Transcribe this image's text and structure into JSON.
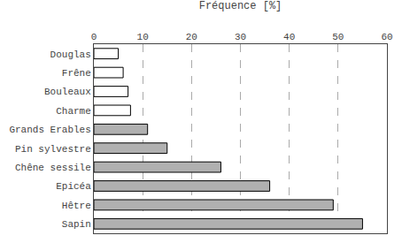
{
  "chart_data": {
    "type": "bar",
    "orientation": "horizontal",
    "categories": [
      "Douglas",
      "Frêne",
      "Bouleaux",
      "Charme",
      "Grands Erables",
      "Pin sylvestre",
      "Chêne sessile",
      "Epicéa",
      "Hêtre",
      "Sapin"
    ],
    "values": [
      5,
      6,
      7,
      7.5,
      11,
      15,
      26,
      36,
      49,
      55
    ],
    "colors": [
      "white",
      "white",
      "white",
      "white",
      "#b0b0b0",
      "#b0b0b0",
      "#b0b0b0",
      "#b0b0b0",
      "#b0b0b0",
      "#b0b0b0"
    ],
    "xlabel": "Fréquence [%]",
    "xlim": [
      0,
      60
    ],
    "xticks": [
      0,
      10,
      20,
      30,
      40,
      50,
      60
    ],
    "grid": true
  }
}
